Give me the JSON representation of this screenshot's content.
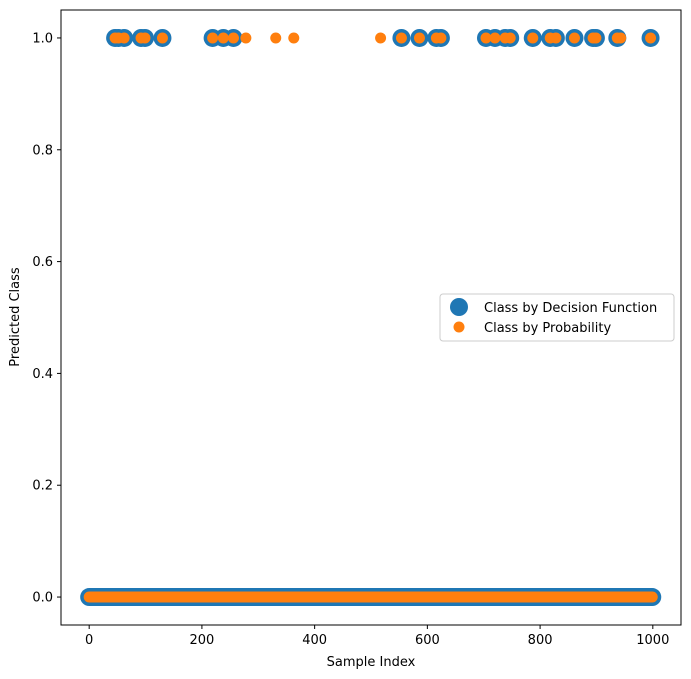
{
  "chart_data": {
    "type": "scatter",
    "title": "",
    "xlabel": "Sample Index",
    "ylabel": "Predicted Class",
    "xlim": [
      -50,
      1050
    ],
    "ylim": [
      -0.05,
      1.05
    ],
    "xticks": [
      0,
      200,
      400,
      600,
      800,
      1000
    ],
    "xtick_labels": [
      "0",
      "200",
      "400",
      "600",
      "800",
      "1000"
    ],
    "yticks": [
      0.0,
      0.2,
      0.4,
      0.6,
      0.8,
      1.0
    ],
    "ytick_labels": [
      "0.0",
      "0.2",
      "0.4",
      "0.6",
      "0.8",
      "1.0"
    ],
    "legend_position": "center-right",
    "series": [
      {
        "name": "Class by Decision Function",
        "color": "#1f77b4",
        "marker_size": "large",
        "positive_x": [
          46,
          52,
          62,
          92,
          99,
          130,
          219,
          238,
          256,
          554,
          586,
          616,
          624,
          704,
          720,
          738,
          747,
          787,
          818,
          828,
          861,
          894,
          899,
          937,
          996
        ],
        "zero_x_range": [
          0,
          999
        ],
        "zero_x_step": 1
      },
      {
        "name": "Class by Probability",
        "color": "#ff7f0e",
        "marker_size": "small",
        "positive_x": [
          46,
          52,
          62,
          92,
          99,
          130,
          219,
          238,
          256,
          278,
          331,
          363,
          517,
          554,
          586,
          616,
          624,
          704,
          720,
          738,
          747,
          787,
          818,
          828,
          861,
          894,
          899,
          937,
          943,
          996
        ],
        "zero_x_range": [
          0,
          999
        ],
        "zero_x_step": 1
      }
    ]
  }
}
